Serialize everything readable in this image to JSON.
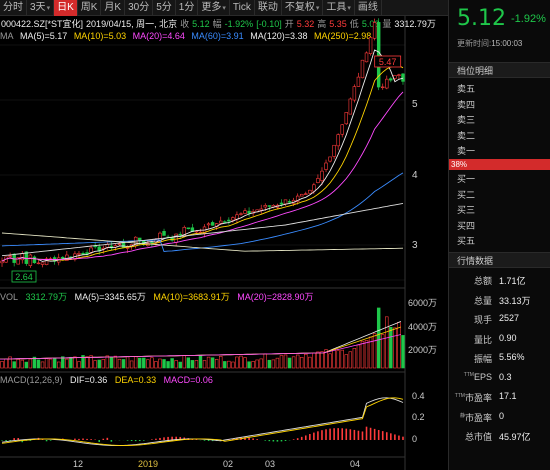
{
  "toolbar": {
    "items": [
      "分时",
      "3天",
      "日K",
      "周K",
      "月K",
      "30分",
      "5分",
      "1分",
      "更多",
      "Tick",
      "联动",
      "不复权",
      "工具",
      "画线"
    ],
    "active_index": 2
  },
  "info": {
    "code": "000422.SZ[*ST宜化]",
    "date": "2019/04/15, 周一, 北京",
    "close_label": "收",
    "close": "5.12",
    "change_label": "幅",
    "change_pct": "-1.92%",
    "change_abs": "[-0.10]",
    "open_label": "开",
    "open": "5.32",
    "high_label": "高",
    "high": "5.35",
    "low_label": "低",
    "low": "5.06",
    "amount_label": "量",
    "amount": "3312.79万"
  },
  "ma": {
    "label": "MA",
    "ma5": "MA(5)=5.17",
    "ma10": "MA(10)=5.03",
    "ma20": "MA(20)=4.64",
    "ma60": "MA(60)=3.91",
    "ma120": "MA(120)=3.38",
    "ma250": "MA(250)=2.98"
  },
  "vol": {
    "label": "VOL",
    "value": "3312.79万",
    "ma5": "MA(5)=3345.65万",
    "ma10": "MA(10)=3683.91万",
    "ma20": "MA(20)=2828.90万"
  },
  "macd": {
    "label": "MACD(12,26,9)",
    "dif": "DIF=0.36",
    "dea": "DEA=0.33",
    "macd": "MACD=0.06"
  },
  "price_axis": [
    "5",
    "4",
    "3"
  ],
  "vol_axis": [
    "6000万",
    "4000万",
    "2000万"
  ],
  "macd_axis": [
    "0.4",
    "0.2",
    "0"
  ],
  "x_axis": [
    "12",
    "2019",
    "02",
    "03",
    "04"
  ],
  "markers": {
    "high": "5.47",
    "low": "2.64"
  },
  "side": {
    "price": "5.12",
    "pct": "-1.92%",
    "update_label": "更新时间:",
    "update_time": "15:00:03",
    "orderbook_title": "档位明细",
    "asks": [
      "卖五",
      "卖四",
      "卖三",
      "卖二",
      "卖一"
    ],
    "bids": [
      "买一",
      "买二",
      "买三",
      "买四",
      "买五"
    ],
    "ratio": "38%",
    "quote_title": "行情数据",
    "stats": [
      {
        "label": "总额",
        "value": "1.71亿"
      },
      {
        "label": "总量",
        "value": "33.13万"
      },
      {
        "label": "现手",
        "value": "2527"
      },
      {
        "label": "量比",
        "value": "0.90"
      },
      {
        "label": "振幅",
        "value": "5.56%"
      },
      {
        "label": "EPS",
        "sup": "TTM",
        "value": "0.3"
      },
      {
        "label": "市盈率",
        "sup": "TTM",
        "value": "17.1"
      },
      {
        "label": "市盈率",
        "sup": "静",
        "value": "0"
      },
      {
        "label": "总市值",
        "sup": "",
        "value": "45.97亿"
      }
    ]
  },
  "colors": {
    "up": "#ff3b3b",
    "down": "#1fc74a",
    "ma5": "#eeeeee",
    "ma10": "#ffd400",
    "ma20": "#ff4aff",
    "ma60": "#3a8cff",
    "ma120": "#dddddd",
    "ma250": "#e0e0c0",
    "dif": "#dddddd",
    "dea": "#ffd400"
  }
}
